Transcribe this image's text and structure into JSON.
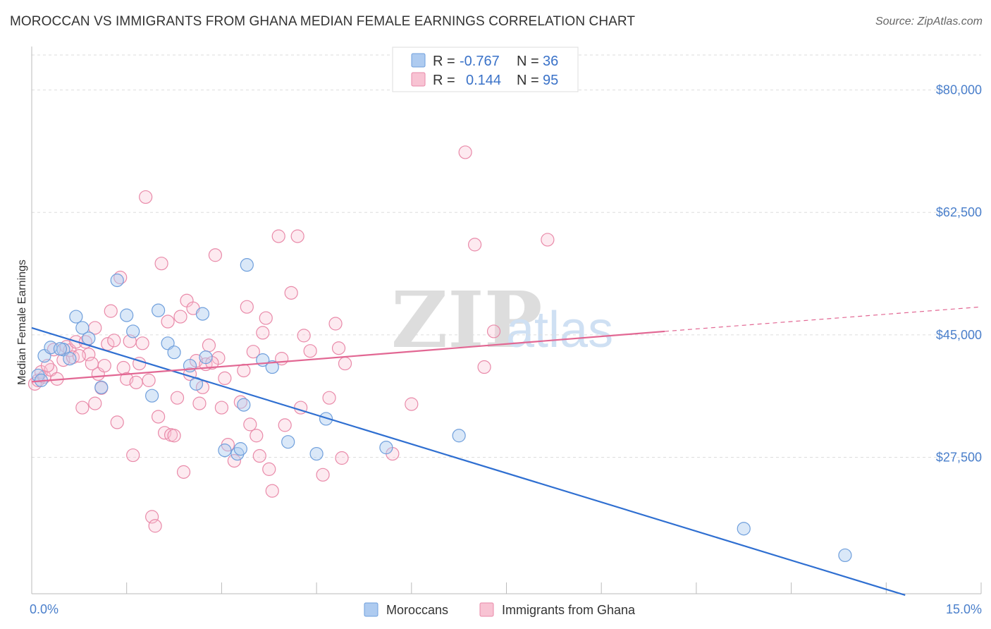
{
  "title": "MOROCCAN VS IMMIGRANTS FROM GHANA MEDIAN FEMALE EARNINGS CORRELATION CHART",
  "source": "Source: ZipAtlas.com",
  "watermark": {
    "zip": "ZIP",
    "atlas": "atlas"
  },
  "legend_top": {
    "rows": [
      {
        "r_label": "R =",
        "r_value": "-0.767",
        "n_label": "N =",
        "n_value": "36",
        "color": "#aecbf0",
        "stroke": "#6f9fdc"
      },
      {
        "r_label": "R =",
        "r_value": "0.144",
        "n_label": "N =",
        "n_value": "95",
        "color": "#f8c3d3",
        "stroke": "#e98aa9"
      }
    ]
  },
  "legend_bottom": [
    {
      "label": "Moroccans",
      "color": "#aecbf0",
      "stroke": "#6f9fdc"
    },
    {
      "label": "Immigrants from Ghana",
      "color": "#f8c3d3",
      "stroke": "#e98aa9"
    }
  ],
  "chart_data": {
    "type": "scatter",
    "title": "MOROCCAN VS IMMIGRANTS FROM GHANA MEDIAN FEMALE EARNINGS CORRELATION CHART",
    "xlabel": "",
    "ylabel": "Median Female Earnings",
    "xlim": [
      0,
      15
    ],
    "ylim": [
      8000,
      85000
    ],
    "x_tick_labels": [
      {
        "value": 0,
        "label": "0.0%"
      },
      {
        "value": 15,
        "label": "15.0%"
      }
    ],
    "y_ticks": [
      {
        "value": 80000,
        "label": "$80,000"
      },
      {
        "value": 62500,
        "label": "$62,500"
      },
      {
        "value": 45000,
        "label": "$45,000"
      },
      {
        "value": 27500,
        "label": "$27,500"
      }
    ],
    "grid": "horizontal dashed",
    "series": [
      {
        "name": "Moroccans",
        "color": "#6f9fdc",
        "trend": {
          "x": [
            0,
            13.8
          ],
          "y": [
            46000,
            7800
          ],
          "style": "solid",
          "color": "#2f6fd1"
        },
        "points": [
          [
            0.1,
            39200
          ],
          [
            0.2,
            42000
          ],
          [
            0.3,
            43200
          ],
          [
            0.5,
            42900
          ],
          [
            0.6,
            41600
          ],
          [
            0.7,
            47600
          ],
          [
            0.8,
            46000
          ],
          [
            0.9,
            44500
          ],
          [
            1.1,
            37500
          ],
          [
            1.35,
            52800
          ],
          [
            1.5,
            47800
          ],
          [
            1.6,
            45500
          ],
          [
            1.9,
            36300
          ],
          [
            2.0,
            48500
          ],
          [
            2.15,
            43800
          ],
          [
            2.25,
            42500
          ],
          [
            2.5,
            40600
          ],
          [
            2.6,
            38000
          ],
          [
            2.7,
            48000
          ],
          [
            2.75,
            41800
          ],
          [
            3.05,
            28500
          ],
          [
            3.25,
            28000
          ],
          [
            3.3,
            28700
          ],
          [
            3.35,
            35000
          ],
          [
            3.4,
            55000
          ],
          [
            3.65,
            41400
          ],
          [
            3.8,
            40400
          ],
          [
            4.05,
            29700
          ],
          [
            4.5,
            28000
          ],
          [
            4.65,
            33000
          ],
          [
            5.6,
            28900
          ],
          [
            6.75,
            30600
          ],
          [
            11.25,
            17300
          ],
          [
            12.85,
            13500
          ],
          [
            0.15,
            38500
          ],
          [
            0.45,
            43000
          ]
        ]
      },
      {
        "name": "Immigrants from Ghana",
        "color": "#e98aa9",
        "trend": {
          "x": [
            0,
            10.0
          ],
          "y": [
            38300,
            45500
          ],
          "style": "solid",
          "color": "#e26793",
          "dashed_extension_to_x": 15,
          "dashed_extension_y": 49000
        },
        "points": [
          [
            0.05,
            38000
          ],
          [
            0.1,
            38500
          ],
          [
            0.15,
            39700
          ],
          [
            0.2,
            39000
          ],
          [
            0.3,
            40000
          ],
          [
            0.35,
            42900
          ],
          [
            0.4,
            38700
          ],
          [
            0.5,
            41400
          ],
          [
            0.55,
            43300
          ],
          [
            0.6,
            42800
          ],
          [
            0.65,
            41800
          ],
          [
            0.7,
            44000
          ],
          [
            0.8,
            34600
          ],
          [
            0.85,
            44000
          ],
          [
            0.9,
            42200
          ],
          [
            0.95,
            40900
          ],
          [
            1.0,
            35200
          ],
          [
            1.05,
            39400
          ],
          [
            1.1,
            37400
          ],
          [
            1.15,
            40600
          ],
          [
            1.2,
            43700
          ],
          [
            1.25,
            48400
          ],
          [
            1.3,
            44200
          ],
          [
            1.35,
            32500
          ],
          [
            1.4,
            53200
          ],
          [
            1.45,
            40300
          ],
          [
            1.5,
            38700
          ],
          [
            1.55,
            44100
          ],
          [
            1.6,
            27800
          ],
          [
            1.65,
            38200
          ],
          [
            1.7,
            40900
          ],
          [
            1.75,
            43800
          ],
          [
            1.8,
            64700
          ],
          [
            1.85,
            38500
          ],
          [
            1.9,
            19000
          ],
          [
            1.95,
            17700
          ],
          [
            2.0,
            33300
          ],
          [
            2.05,
            55200
          ],
          [
            2.1,
            31000
          ],
          [
            2.15,
            46900
          ],
          [
            2.2,
            30700
          ],
          [
            2.25,
            30600
          ],
          [
            2.3,
            36000
          ],
          [
            2.35,
            47600
          ],
          [
            2.4,
            25400
          ],
          [
            2.45,
            49900
          ],
          [
            2.5,
            39400
          ],
          [
            2.55,
            48800
          ],
          [
            2.6,
            41300
          ],
          [
            2.65,
            35200
          ],
          [
            2.7,
            37500
          ],
          [
            2.75,
            40800
          ],
          [
            2.8,
            43500
          ],
          [
            2.9,
            56400
          ],
          [
            2.95,
            41700
          ],
          [
            3.0,
            34600
          ],
          [
            3.05,
            38800
          ],
          [
            3.1,
            29300
          ],
          [
            3.2,
            27000
          ],
          [
            3.3,
            35400
          ],
          [
            3.35,
            39900
          ],
          [
            3.4,
            49000
          ],
          [
            3.45,
            32200
          ],
          [
            3.5,
            42600
          ],
          [
            3.55,
            30600
          ],
          [
            3.6,
            27700
          ],
          [
            3.65,
            45300
          ],
          [
            3.7,
            47400
          ],
          [
            3.75,
            25800
          ],
          [
            3.8,
            22700
          ],
          [
            3.9,
            59100
          ],
          [
            3.95,
            41600
          ],
          [
            4.0,
            32100
          ],
          [
            4.1,
            51000
          ],
          [
            4.2,
            59100
          ],
          [
            4.25,
            34600
          ],
          [
            4.3,
            44900
          ],
          [
            4.4,
            42700
          ],
          [
            4.6,
            25000
          ],
          [
            4.7,
            36000
          ],
          [
            4.8,
            46600
          ],
          [
            4.85,
            43100
          ],
          [
            4.9,
            27400
          ],
          [
            4.95,
            40900
          ],
          [
            5.7,
            28000
          ],
          [
            6.0,
            35100
          ],
          [
            6.85,
            71100
          ],
          [
            7.0,
            57900
          ],
          [
            7.15,
            40400
          ],
          [
            7.3,
            45500
          ],
          [
            8.15,
            58600
          ],
          [
            0.25,
            40600
          ],
          [
            0.75,
            42000
          ],
          [
            1.0,
            46000
          ],
          [
            2.85,
            41000
          ]
        ]
      }
    ]
  }
}
